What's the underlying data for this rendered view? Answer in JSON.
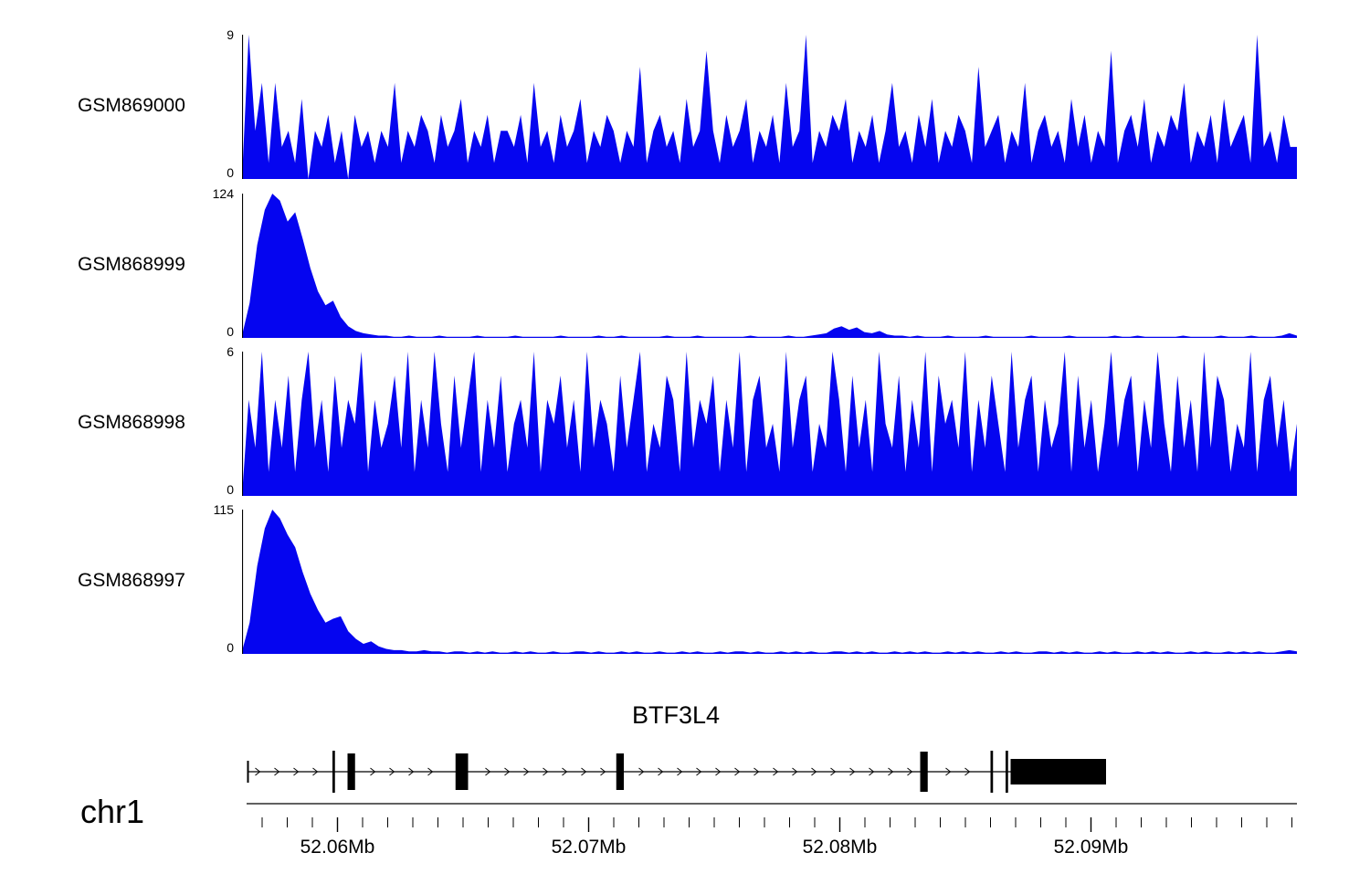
{
  "colors": {
    "signal": "#0505f0",
    "gene": "#000000",
    "axis": "#000000"
  },
  "chart_data": [
    {
      "type": "area",
      "track": "GSM869000",
      "ymin": 0,
      "ymax": 9,
      "ylim": [
        0,
        9
      ],
      "values": [
        0,
        9,
        3,
        6,
        1,
        6,
        2,
        3,
        1,
        5,
        0,
        3,
        2,
        4,
        1,
        3,
        0,
        4,
        2,
        3,
        1,
        3,
        2,
        6,
        1,
        3,
        2,
        4,
        3,
        1,
        4,
        2,
        3,
        5,
        1,
        3,
        2,
        4,
        1,
        3,
        3,
        2,
        4,
        1,
        6,
        2,
        3,
        1,
        4,
        2,
        3,
        5,
        1,
        3,
        2,
        4,
        3,
        1,
        3,
        2,
        7,
        1,
        3,
        4,
        2,
        3,
        1,
        5,
        2,
        3,
        8,
        3,
        1,
        4,
        2,
        3,
        5,
        1,
        3,
        2,
        4,
        1,
        6,
        2,
        3,
        9,
        1,
        3,
        2,
        4,
        3,
        5,
        1,
        3,
        2,
        4,
        1,
        3,
        6,
        2,
        3,
        1,
        4,
        2,
        5,
        1,
        3,
        2,
        4,
        3,
        1,
        7,
        2,
        3,
        4,
        1,
        3,
        2,
        6,
        1,
        3,
        4,
        2,
        3,
        1,
        5,
        2,
        4,
        1,
        3,
        2,
        8,
        1,
        3,
        4,
        2,
        5,
        1,
        3,
        2,
        4,
        3,
        6,
        1,
        3,
        2,
        4,
        1,
        5,
        2,
        3,
        4,
        1,
        9,
        2,
        3,
        1,
        4,
        2,
        2
      ]
    },
    {
      "type": "area",
      "track": "GSM868999",
      "ymin": 0,
      "ymax": 124,
      "ylim": [
        0,
        124
      ],
      "values": [
        2,
        30,
        80,
        110,
        124,
        118,
        100,
        108,
        85,
        60,
        40,
        28,
        32,
        18,
        10,
        6,
        4,
        3,
        2,
        2,
        1,
        1,
        2,
        1,
        1,
        1,
        2,
        1,
        1,
        1,
        1,
        2,
        1,
        1,
        1,
        1,
        2,
        1,
        1,
        1,
        1,
        1,
        2,
        1,
        1,
        1,
        1,
        2,
        1,
        1,
        2,
        1,
        1,
        1,
        1,
        1,
        2,
        1,
        1,
        1,
        2,
        1,
        1,
        1,
        1,
        1,
        1,
        2,
        1,
        1,
        1,
        1,
        2,
        1,
        1,
        2,
        3,
        4,
        8,
        10,
        7,
        9,
        5,
        4,
        6,
        3,
        2,
        2,
        1,
        2,
        1,
        1,
        1,
        2,
        1,
        1,
        1,
        1,
        2,
        1,
        1,
        1,
        1,
        1,
        2,
        1,
        1,
        1,
        1,
        2,
        1,
        1,
        1,
        1,
        1,
        2,
        1,
        1,
        2,
        1,
        1,
        1,
        1,
        1,
        2,
        1,
        1,
        1,
        1,
        2,
        1,
        1,
        1,
        2,
        1,
        1,
        1,
        2,
        4,
        2
      ]
    },
    {
      "type": "area",
      "track": "GSM868998",
      "ymin": 0,
      "ymax": 6,
      "ylim": [
        0,
        6
      ],
      "values": [
        0,
        4,
        2,
        6,
        1,
        4,
        2,
        5,
        1,
        4,
        6,
        2,
        4,
        1,
        5,
        2,
        4,
        3,
        6,
        1,
        4,
        2,
        3,
        5,
        2,
        6,
        1,
        4,
        2,
        6,
        3,
        1,
        5,
        2,
        4,
        6,
        1,
        4,
        2,
        5,
        1,
        3,
        4,
        2,
        6,
        1,
        4,
        3,
        5,
        2,
        4,
        1,
        6,
        2,
        4,
        3,
        1,
        5,
        2,
        4,
        6,
        1,
        3,
        2,
        5,
        4,
        1,
        6,
        2,
        4,
        3,
        5,
        1,
        4,
        2,
        6,
        1,
        4,
        5,
        2,
        3,
        1,
        6,
        2,
        4,
        5,
        1,
        3,
        2,
        6,
        4,
        1,
        5,
        2,
        4,
        1,
        6,
        3,
        2,
        5,
        1,
        4,
        2,
        6,
        1,
        5,
        3,
        4,
        2,
        6,
        1,
        4,
        2,
        5,
        3,
        1,
        6,
        2,
        4,
        5,
        1,
        4,
        2,
        3,
        6,
        1,
        5,
        2,
        4,
        1,
        3,
        6,
        2,
        4,
        5,
        1,
        4,
        2,
        6,
        3,
        1,
        5,
        2,
        4,
        1,
        6,
        2,
        5,
        4,
        1,
        3,
        2,
        6,
        1,
        4,
        5,
        2,
        4,
        1,
        3
      ]
    },
    {
      "type": "area",
      "track": "GSM868997",
      "ymin": 0,
      "ymax": 115,
      "ylim": [
        0,
        115
      ],
      "values": [
        2,
        25,
        70,
        100,
        115,
        108,
        95,
        85,
        65,
        48,
        35,
        25,
        28,
        30,
        18,
        12,
        8,
        10,
        6,
        4,
        3,
        3,
        2,
        2,
        3,
        2,
        2,
        1,
        2,
        2,
        1,
        2,
        1,
        2,
        1,
        1,
        2,
        1,
        2,
        1,
        1,
        2,
        1,
        1,
        2,
        2,
        1,
        2,
        1,
        1,
        2,
        1,
        2,
        1,
        1,
        2,
        1,
        1,
        2,
        1,
        2,
        1,
        1,
        2,
        1,
        2,
        2,
        1,
        2,
        1,
        1,
        2,
        1,
        2,
        1,
        2,
        1,
        1,
        2,
        2,
        1,
        2,
        1,
        2,
        1,
        1,
        2,
        1,
        2,
        1,
        2,
        1,
        1,
        2,
        1,
        2,
        1,
        2,
        1,
        1,
        2,
        1,
        2,
        1,
        1,
        2,
        2,
        1,
        2,
        1,
        2,
        1,
        1,
        2,
        1,
        2,
        1,
        1,
        2,
        1,
        2,
        1,
        2,
        1,
        1,
        2,
        1,
        2,
        1,
        1,
        2,
        1,
        2,
        1,
        2,
        1,
        1,
        2,
        3,
        2
      ]
    },
    {
      "type": "gene-model",
      "name": "BTF3L4",
      "strand": "+",
      "start": 52.0564,
      "end": 52.0906,
      "exons": [
        {
          "start": 52.0564,
          "end": 52.05645,
          "h": 24
        },
        {
          "start": 52.0598,
          "end": 52.0599,
          "h": 46
        },
        {
          "start": 52.0604,
          "end": 52.0607,
          "h": 40
        },
        {
          "start": 52.0647,
          "end": 52.0652,
          "h": 40
        },
        {
          "start": 52.0711,
          "end": 52.0714,
          "h": 40
        },
        {
          "start": 52.0832,
          "end": 52.0835,
          "h": 44
        },
        {
          "start": 52.086,
          "end": 52.0861,
          "h": 46
        },
        {
          "start": 52.0866,
          "end": 52.0867,
          "h": 46
        },
        {
          "start": 52.0868,
          "end": 52.0906,
          "h": 28
        }
      ]
    },
    {
      "type": "axis",
      "chrom": "chr1",
      "unit": "Mb",
      "start": 52.0562,
      "end": 52.0982,
      "minor_start": 52.057,
      "minor_step": 0.001,
      "minor_count": 42,
      "major_ticks": [
        {
          "pos": 52.06,
          "label": "52.06Mb"
        },
        {
          "pos": 52.07,
          "label": "52.07Mb"
        },
        {
          "pos": 52.08,
          "label": "52.08Mb"
        },
        {
          "pos": 52.09,
          "label": "52.09Mb"
        }
      ]
    }
  ]
}
